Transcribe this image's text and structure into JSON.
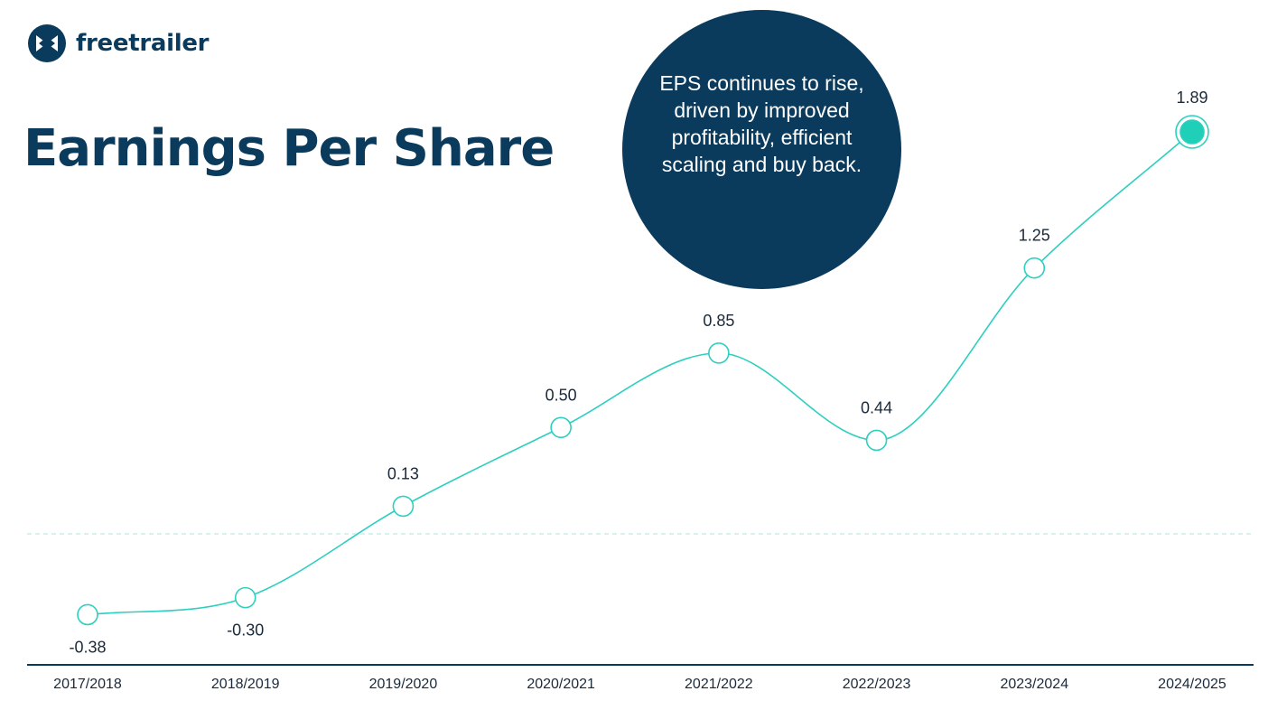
{
  "brand": {
    "name": "freetrailer",
    "icon": "freetrailer-logo-icon",
    "color": "#0a3a5c"
  },
  "callout": {
    "text": "EPS continues to rise, driven by improved profitability, efficient scaling and buy back."
  },
  "colors": {
    "navy": "#0a3a5c",
    "line": "#2ecfbf",
    "highlight": "#1fcfb8"
  },
  "chart_data": {
    "type": "line",
    "title": "Earnings Per Share",
    "categories": [
      "2017/2018",
      "2018/2019",
      "2019/2020",
      "2020/2021",
      "2021/2022",
      "2022/2023",
      "2023/2024",
      "2024/2025"
    ],
    "values": [
      -0.38,
      -0.3,
      0.13,
      0.5,
      0.85,
      0.44,
      1.25,
      1.89
    ],
    "value_labels": [
      "-0.38",
      "-0.30",
      "0.13",
      "0.50",
      "0.85",
      "0.44",
      "1.25",
      "1.89"
    ],
    "highlight_last": true,
    "zero_line": "dashed",
    "grid": false,
    "xlabel": "",
    "ylabel": "",
    "ylim": [
      -0.6,
      1.89
    ]
  }
}
